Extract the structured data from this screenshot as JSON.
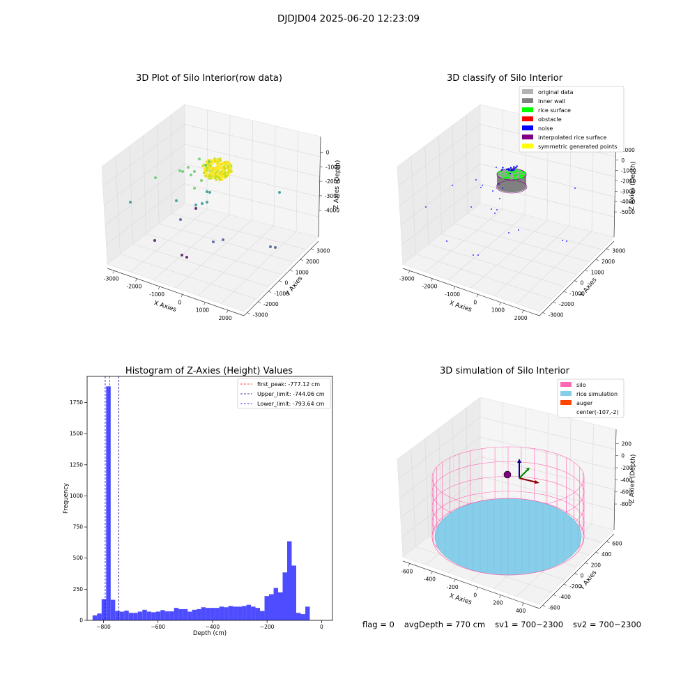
{
  "suptitle": "DJDJD04 2025-06-20 12:23:09",
  "footer": {
    "flag": "flag = 0",
    "avg_depth": "avgDepth = 770 cm",
    "sv1": "sv1 = 700~2300",
    "sv2": "sv2 = 700~2300"
  },
  "chart_data": [
    {
      "type": "scatter",
      "title": "3D Plot of Silo Interior(row data)",
      "xlabel": "X Axies",
      "ylabel": "Y Axies",
      "zlabel": "Z Axies (Depth)",
      "x_ticks": [
        "-3000",
        "-2000",
        "-1000",
        "0",
        "1000",
        "2000"
      ],
      "y_ticks": [
        "-3000",
        "-2000",
        "-1000",
        "0",
        "1000",
        "2000",
        "3000"
      ],
      "z_ticks": [
        "-4000",
        "-3000",
        "-2000",
        "-1000",
        "0"
      ],
      "colormap": [
        "#440154",
        "#3b528b",
        "#21918c",
        "#5ec962",
        "#fde725"
      ]
    },
    {
      "type": "scatter",
      "title": "3D classify of Silo Interior",
      "xlabel": "X Axies",
      "ylabel": "Y Axies",
      "zlabel": "Z Axies (Depth)",
      "x_ticks": [
        "-3000",
        "-2000",
        "-1000",
        "0",
        "1000",
        "2000"
      ],
      "y_ticks": [
        "-3000",
        "-2000",
        "-1000",
        "0",
        "1000",
        "2000",
        "3000"
      ],
      "z_ticks": [
        "-5000",
        "-4000",
        "-3000",
        "-2000",
        "-1000",
        "0",
        "1000"
      ],
      "legend_position": "top-right",
      "legend": [
        {
          "label": "original data",
          "color": "#b3b3b3"
        },
        {
          "label": "inner wall",
          "color": "#808080"
        },
        {
          "label": "rice surface",
          "color": "#00ff00"
        },
        {
          "label": "obstacle",
          "color": "#ff0000"
        },
        {
          "label": "noise",
          "color": "#0000ff"
        },
        {
          "label": "interpolated rice surface",
          "color": "#800080"
        },
        {
          "label": "symmetric generated points",
          "color": "#ffff00"
        }
      ]
    },
    {
      "type": "bar",
      "title": "Histogram of Z-Axies (Height) Values",
      "xlabel": "Depth (cm)",
      "ylabel": "Frequency",
      "xlim": [
        -860,
        40
      ],
      "ylim": [
        0,
        1960
      ],
      "x_ticks": [
        -800,
        -600,
        -400,
        -200,
        0
      ],
      "y_ticks": [
        0,
        250,
        500,
        750,
        1000,
        1250,
        1500,
        1750
      ],
      "bar_color": "#4d4dff",
      "bin_start": -840,
      "bin_width": 16.6,
      "values": [
        40,
        55,
        170,
        1880,
        165,
        75,
        70,
        78,
        60,
        60,
        70,
        85,
        70,
        65,
        70,
        82,
        72,
        72,
        100,
        90,
        90,
        70,
        85,
        90,
        105,
        100,
        100,
        100,
        110,
        105,
        115,
        110,
        110,
        115,
        125,
        110,
        100,
        75,
        195,
        210,
        260,
        225,
        385,
        635,
        440,
        60,
        50,
        110
      ],
      "vlines": [
        {
          "label": "first_peak: -777.12 cm",
          "value": -777.12,
          "color": "#ff0000"
        },
        {
          "label": "Upper_limit: -744.06 cm",
          "value": -744.06,
          "color": "#00008b"
        },
        {
          "label": "Lower_limit: -793.64 cm",
          "value": -793.64,
          "color": "#0000ff"
        }
      ],
      "legend_position": "top-right"
    },
    {
      "type": "scatter",
      "title": "3D simulation of Silo Interior",
      "xlabel": "X Axies",
      "ylabel": "Y Axies",
      "zlabel": "Z Axies (Depth)",
      "x_ticks": [
        "-600",
        "-400",
        "-200",
        "0",
        "200",
        "400"
      ],
      "y_ticks": [
        "-600",
        "-400",
        "-200",
        "0",
        "200",
        "400",
        "600"
      ],
      "z_ticks": [
        "-800",
        "-600",
        "-400",
        "-200",
        "0",
        "200"
      ],
      "legend_position": "top-right",
      "legend": [
        {
          "label": "silo",
          "color": "#ff69b4"
        },
        {
          "label": "rice simulation",
          "color": "#87ceeb"
        },
        {
          "label": "auger",
          "color": "#ff4500"
        },
        {
          "label": "center(-107,-2)",
          "color": ""
        }
      ]
    }
  ]
}
